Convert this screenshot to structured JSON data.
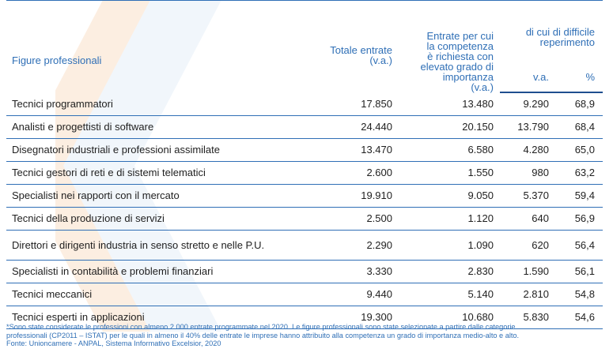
{
  "table": {
    "headers": {
      "figure": "Figure professionali",
      "totale_line1": "Totale entrate",
      "totale_line2": "(v.a.)",
      "competenza_lines": [
        "Entrate per cui",
        "la competenza",
        "è richiesta con",
        "elevato grado di",
        "importanza",
        "(v.a.)"
      ],
      "difficile_line1": "di cui di difficile",
      "difficile_line2": "reperimento",
      "va": "v.a.",
      "pct": "%"
    },
    "rows": [
      {
        "figure": "Tecnici programmatori",
        "totale": "17.850",
        "competenza": "13.480",
        "difficile_va": "9.290",
        "difficile_pct": "68,9"
      },
      {
        "figure": "Analisti e progettisti di software",
        "totale": "24.440",
        "competenza": "20.150",
        "difficile_va": "13.790",
        "difficile_pct": "68,4"
      },
      {
        "figure": "Disegnatori industriali e professioni assimilate",
        "totale": "13.470",
        "competenza": "6.580",
        "difficile_va": "4.280",
        "difficile_pct": "65,0"
      },
      {
        "figure": "Tecnici gestori di reti e di sistemi telematici",
        "totale": "2.600",
        "competenza": "1.550",
        "difficile_va": "980",
        "difficile_pct": "63,2"
      },
      {
        "figure": "Specialisti nei rapporti con il mercato",
        "totale": "19.910",
        "competenza": "9.050",
        "difficile_va": "5.370",
        "difficile_pct": "59,4"
      },
      {
        "figure": "Tecnici della produzione di servizi",
        "totale": "2.500",
        "competenza": "1.120",
        "difficile_va": "640",
        "difficile_pct": "56,9"
      },
      {
        "figure": "Direttori e dirigenti industria in senso stretto e nelle P.U.",
        "totale": "2.290",
        "competenza": "1.090",
        "difficile_va": "620",
        "difficile_pct": "56,4"
      },
      {
        "figure": "Specialisti in contabilità e problemi finanziari",
        "totale": "3.330",
        "competenza": "2.830",
        "difficile_va": "1.590",
        "difficile_pct": "56,1"
      },
      {
        "figure": "Tecnici meccanici",
        "totale": "9.440",
        "competenza": "5.140",
        "difficile_va": "2.810",
        "difficile_pct": "54,8"
      },
      {
        "figure": "Tecnici esperti in applicazioni",
        "totale": "19.300",
        "competenza": "10.680",
        "difficile_va": "5.830",
        "difficile_pct": "54,6"
      }
    ]
  },
  "footnote": {
    "line1": "*Sono state considerate le professioni con almeno 2.000 entrate programmate nel 2020. Le figure professionali sono state selezionate a partire dalle categorie",
    "line2": "professionali (CP2011 – ISTAT) per le quali in almeno il 40% delle entrate le imprese hanno attribuito alla competenza un grado di importanza medio-alto e alto.",
    "line3": "Fonte: Unioncamere - ANPAL, Sistema Informativo Excelsior, 2020"
  },
  "colors": {
    "accent_blue": "#2f6fb6",
    "rule_dark": "#1f4f8f",
    "text": "#1f1f1f"
  }
}
